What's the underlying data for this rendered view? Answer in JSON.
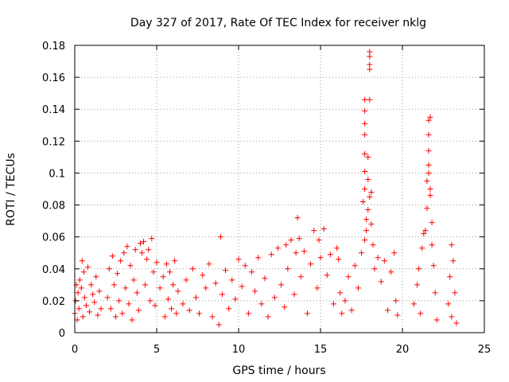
{
  "chart_data": {
    "type": "scatter",
    "title": "Day 327 of 2017, Rate Of TEC Index for receiver nklg",
    "xlabel": "GPS time / hours",
    "ylabel": "ROTI / TECUs",
    "xlim": [
      0,
      25
    ],
    "ylim": [
      0,
      0.18
    ],
    "x_ticks": [
      0,
      5,
      10,
      15,
      20,
      25
    ],
    "x_tick_labels": [
      "0",
      "5",
      "10",
      "15",
      "20",
      "25"
    ],
    "y_ticks": [
      0,
      0.02,
      0.04,
      0.06,
      0.08,
      0.1,
      0.12,
      0.14,
      0.16,
      0.18
    ],
    "y_tick_labels": [
      "0",
      "0.02",
      "0.04",
      "0.06",
      "0.08",
      "0.1",
      "0.12",
      "0.14",
      "0.16",
      "0.18"
    ],
    "grid": true,
    "marker": "+",
    "marker_color": "#ff0000",
    "series": [
      {
        "points": [
          [
            0.0,
            0.012
          ],
          [
            0.05,
            0.02
          ],
          [
            0.1,
            0.03
          ],
          [
            0.15,
            0.008
          ],
          [
            0.2,
            0.025
          ],
          [
            0.25,
            0.015
          ],
          [
            0.3,
            0.033
          ],
          [
            0.4,
            0.028
          ],
          [
            0.45,
            0.045
          ],
          [
            0.5,
            0.01
          ],
          [
            0.55,
            0.038
          ],
          [
            0.6,
            0.022
          ],
          [
            0.7,
            0.017
          ],
          [
            0.8,
            0.041
          ],
          [
            0.9,
            0.013
          ],
          [
            1.0,
            0.03
          ],
          [
            1.1,
            0.024
          ],
          [
            1.2,
            0.019
          ],
          [
            1.3,
            0.035
          ],
          [
            1.4,
            0.011
          ],
          [
            1.5,
            0.026
          ],
          [
            1.6,
            0.015
          ],
          [
            2.0,
            0.022
          ],
          [
            2.1,
            0.04
          ],
          [
            2.2,
            0.015
          ],
          [
            2.3,
            0.048
          ],
          [
            2.4,
            0.03
          ],
          [
            2.5,
            0.01
          ],
          [
            2.6,
            0.037
          ],
          [
            2.7,
            0.02
          ],
          [
            2.8,
            0.045
          ],
          [
            2.9,
            0.012
          ],
          [
            3.0,
            0.05
          ],
          [
            3.1,
            0.028
          ],
          [
            3.2,
            0.054
          ],
          [
            3.3,
            0.018
          ],
          [
            3.4,
            0.042
          ],
          [
            3.5,
            0.008
          ],
          [
            3.6,
            0.033
          ],
          [
            3.7,
            0.052
          ],
          [
            3.8,
            0.025
          ],
          [
            3.9,
            0.014
          ],
          [
            4.0,
            0.056
          ],
          [
            4.1,
            0.05
          ],
          [
            4.2,
            0.057
          ],
          [
            4.3,
            0.03
          ],
          [
            4.4,
            0.046
          ],
          [
            4.5,
            0.052
          ],
          [
            4.6,
            0.02
          ],
          [
            4.7,
            0.059
          ],
          [
            4.8,
            0.038
          ],
          [
            4.9,
            0.017
          ],
          [
            5.0,
            0.044
          ],
          [
            5.2,
            0.028
          ],
          [
            5.4,
            0.035
          ],
          [
            5.5,
            0.01
          ],
          [
            5.6,
            0.043
          ],
          [
            5.7,
            0.021
          ],
          [
            5.8,
            0.038
          ],
          [
            5.9,
            0.015
          ],
          [
            6.0,
            0.03
          ],
          [
            6.1,
            0.045
          ],
          [
            6.2,
            0.012
          ],
          [
            6.3,
            0.026
          ],
          [
            6.6,
            0.018
          ],
          [
            6.8,
            0.033
          ],
          [
            7.0,
            0.014
          ],
          [
            7.2,
            0.04
          ],
          [
            7.4,
            0.022
          ],
          [
            7.6,
            0.012
          ],
          [
            7.8,
            0.036
          ],
          [
            8.0,
            0.028
          ],
          [
            8.2,
            0.043
          ],
          [
            8.4,
            0.01
          ],
          [
            8.6,
            0.031
          ],
          [
            8.8,
            0.005
          ],
          [
            8.9,
            0.06
          ],
          [
            9.0,
            0.024
          ],
          [
            9.2,
            0.039
          ],
          [
            9.4,
            0.015
          ],
          [
            9.6,
            0.033
          ],
          [
            9.8,
            0.021
          ],
          [
            10.0,
            0.046
          ],
          [
            10.2,
            0.029
          ],
          [
            10.4,
            0.042
          ],
          [
            10.6,
            0.012
          ],
          [
            10.8,
            0.038
          ],
          [
            11.0,
            0.026
          ],
          [
            11.2,
            0.047
          ],
          [
            11.4,
            0.018
          ],
          [
            11.6,
            0.034
          ],
          [
            11.8,
            0.01
          ],
          [
            12.0,
            0.049
          ],
          [
            12.2,
            0.022
          ],
          [
            12.4,
            0.053
          ],
          [
            12.6,
            0.03
          ],
          [
            12.8,
            0.016
          ],
          [
            12.9,
            0.055
          ],
          [
            13.0,
            0.04
          ],
          [
            13.2,
            0.058
          ],
          [
            13.4,
            0.024
          ],
          [
            13.5,
            0.05
          ],
          [
            13.6,
            0.072
          ],
          [
            13.7,
            0.059
          ],
          [
            13.8,
            0.035
          ],
          [
            14.0,
            0.051
          ],
          [
            14.2,
            0.012
          ],
          [
            14.4,
            0.043
          ],
          [
            14.6,
            0.064
          ],
          [
            14.8,
            0.028
          ],
          [
            14.9,
            0.058
          ],
          [
            15.0,
            0.047
          ],
          [
            15.2,
            0.065
          ],
          [
            15.4,
            0.036
          ],
          [
            15.6,
            0.049
          ],
          [
            15.8,
            0.018
          ],
          [
            16.0,
            0.053
          ],
          [
            16.1,
            0.046
          ],
          [
            16.2,
            0.025
          ],
          [
            16.3,
            0.012
          ],
          [
            16.5,
            0.02
          ],
          [
            16.7,
            0.035
          ],
          [
            16.9,
            0.014
          ],
          [
            17.1,
            0.042
          ],
          [
            17.3,
            0.028
          ],
          [
            17.5,
            0.05
          ],
          [
            17.6,
            0.082
          ],
          [
            17.7,
            0.058
          ],
          [
            17.7,
            0.09
          ],
          [
            17.7,
            0.101
          ],
          [
            17.7,
            0.112
          ],
          [
            17.7,
            0.124
          ],
          [
            17.7,
            0.131
          ],
          [
            17.7,
            0.139
          ],
          [
            17.7,
            0.146
          ],
          [
            17.8,
            0.071
          ],
          [
            17.8,
            0.064
          ],
          [
            17.9,
            0.077
          ],
          [
            17.9,
            0.11
          ],
          [
            17.9,
            0.096
          ],
          [
            18.0,
            0.085
          ],
          [
            18.0,
            0.146
          ],
          [
            18.0,
            0.165
          ],
          [
            18.0,
            0.168
          ],
          [
            18.0,
            0.173
          ],
          [
            18.0,
            0.176
          ],
          [
            18.1,
            0.088
          ],
          [
            18.1,
            0.068
          ],
          [
            18.2,
            0.055
          ],
          [
            18.3,
            0.04
          ],
          [
            18.5,
            0.047
          ],
          [
            18.7,
            0.032
          ],
          [
            18.9,
            0.045
          ],
          [
            19.1,
            0.014
          ],
          [
            19.3,
            0.038
          ],
          [
            19.5,
            0.05
          ],
          [
            19.6,
            0.02
          ],
          [
            19.7,
            0.011
          ],
          [
            20.7,
            0.018
          ],
          [
            20.9,
            0.03
          ],
          [
            21.0,
            0.04
          ],
          [
            21.1,
            0.012
          ],
          [
            21.2,
            0.053
          ],
          [
            21.3,
            0.062
          ],
          [
            21.4,
            0.064
          ],
          [
            21.5,
            0.078
          ],
          [
            21.5,
            0.095
          ],
          [
            21.6,
            0.1
          ],
          [
            21.6,
            0.105
          ],
          [
            21.6,
            0.114
          ],
          [
            21.6,
            0.124
          ],
          [
            21.6,
            0.133
          ],
          [
            21.7,
            0.135
          ],
          [
            21.7,
            0.09
          ],
          [
            21.7,
            0.086
          ],
          [
            21.8,
            0.069
          ],
          [
            21.8,
            0.055
          ],
          [
            21.9,
            0.042
          ],
          [
            22.0,
            0.025
          ],
          [
            22.1,
            0.008
          ],
          [
            22.8,
            0.018
          ],
          [
            22.9,
            0.035
          ],
          [
            23.0,
            0.055
          ],
          [
            23.0,
            0.01
          ],
          [
            23.1,
            0.045
          ],
          [
            23.2,
            0.025
          ],
          [
            23.3,
            0.006
          ]
        ]
      }
    ]
  }
}
